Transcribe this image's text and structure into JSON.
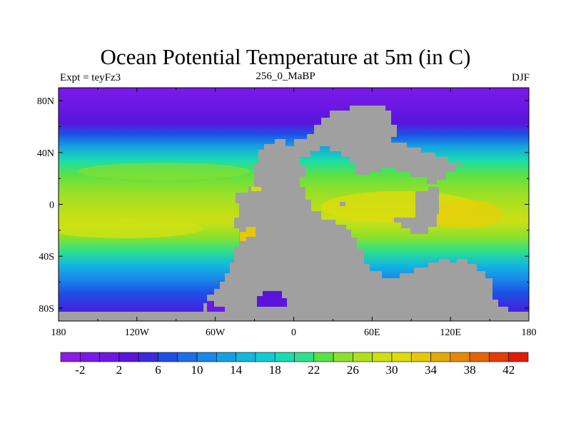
{
  "title": "Ocean Potential Temperature at 5m (in C)",
  "left_string": "Expt = teyFz3",
  "center_string": "256_0_MaBP",
  "right_string": "DJF",
  "chart_data": {
    "type": "heatmap",
    "title": "Ocean Potential Temperature at 5m (in C)",
    "variable": "Ocean Potential Temperature at 5m",
    "units": "C",
    "xlim": [
      -180,
      180
    ],
    "ylim": [
      -90,
      90
    ],
    "x_ticks": [
      {
        "value": -180,
        "label": "180"
      },
      {
        "value": -120,
        "label": "120W"
      },
      {
        "value": -60,
        "label": "60W"
      },
      {
        "value": 0,
        "label": "0"
      },
      {
        "value": 60,
        "label": "60E"
      },
      {
        "value": 120,
        "label": "120E"
      },
      {
        "value": 180,
        "label": "180"
      }
    ],
    "y_ticks": [
      {
        "value": 80,
        "label": "80N"
      },
      {
        "value": 40,
        "label": "40N"
      },
      {
        "value": 0,
        "label": "0"
      },
      {
        "value": -40,
        "label": "40S"
      },
      {
        "value": -80,
        "label": "80S"
      }
    ],
    "colorbar": {
      "levels": [
        -2,
        2,
        6,
        10,
        14,
        18,
        22,
        26,
        30,
        34,
        38,
        42
      ],
      "colors": [
        "#8a1ee6",
        "#7a1ae8",
        "#6c18e4",
        "#5a14dc",
        "#3c2ae0",
        "#1e50e6",
        "#1a6ee8",
        "#1a88e8",
        "#16a0e2",
        "#12b8de",
        "#10ccd4",
        "#18dcb0",
        "#2ee08a",
        "#58e048",
        "#8ce02c",
        "#b0e01c",
        "#cce014",
        "#dcdc0c",
        "#e4c80a",
        "#e4a808",
        "#e48806",
        "#e46404",
        "#e43c02",
        "#e41a00"
      ]
    },
    "land_color": "#a0a0a0"
  }
}
